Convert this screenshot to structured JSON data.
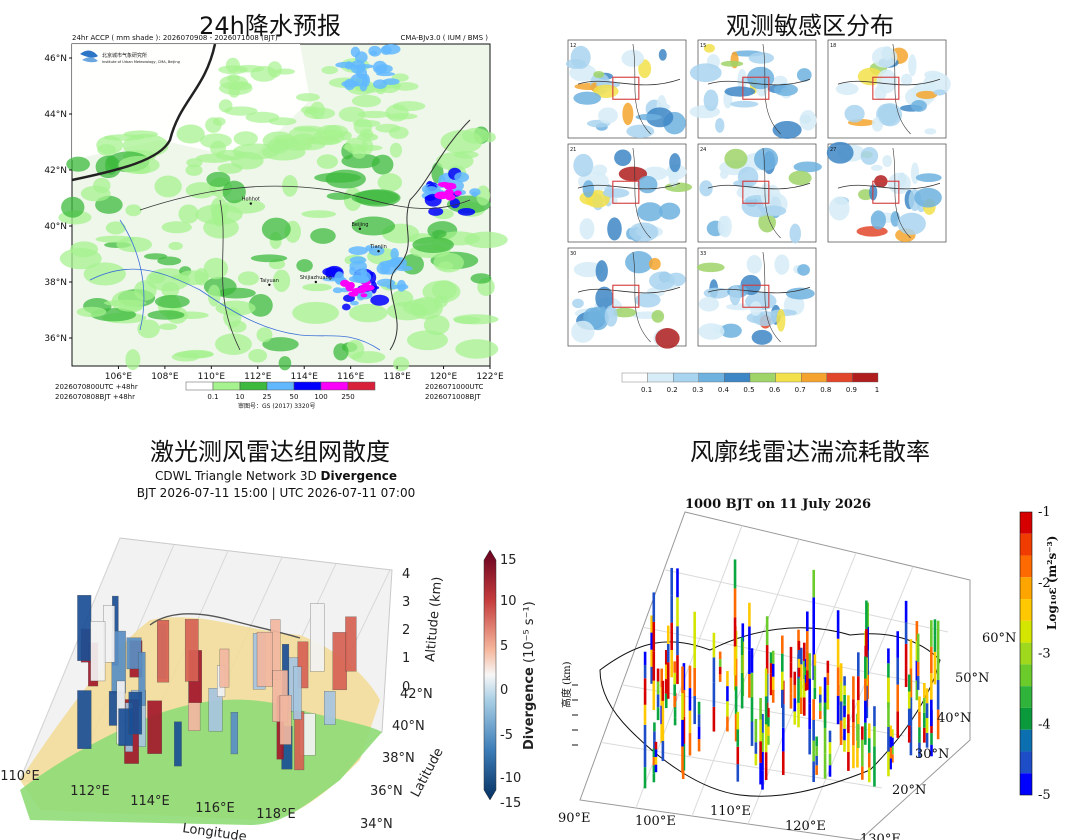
{
  "panels": {
    "p1": {
      "heading": "24h降水预报",
      "header_left": "24hr ACCP ( mm shade ): 2026070908 - 2026071008 (BJT)",
      "header_right": "CMA-BJv3.0 ( IUM / BMS )",
      "logo_text": "北京城市气象研究所",
      "logo_sub": "Institute of Urban Meteorology, CMA, Beijing",
      "lat_labels": [
        "46°N",
        "44°N",
        "42°N",
        "40°N",
        "38°N",
        "36°N"
      ],
      "lon_labels": [
        "106°E",
        "108°E",
        "110°E",
        "112°E",
        "114°E",
        "116°E",
        "118°E",
        "120°E",
        "122°E"
      ],
      "cities": [
        "Hohhot",
        "Beijing",
        "Tianjin",
        "Shijiazhuang",
        "Taiyuan"
      ],
      "footer_left": [
        "2026070800UTC  +48hr",
        "2026070808BJT   +48hr"
      ],
      "footer_right": [
        "2026071000UTC",
        "2026071008BJT"
      ],
      "legend_ticks": [
        "0.1",
        "10",
        "25",
        "50",
        "100",
        "250"
      ],
      "legend_colors": [
        "#ffffff",
        "#a6f28f",
        "#3dba3d",
        "#61b8ff",
        "#0000ff",
        "#fa00fa",
        "#d9203b"
      ],
      "approval": "审图号：GS (2017) 3320号"
    },
    "p2": {
      "heading": "观测敏感区分布",
      "panel_ids": [
        "12",
        "15",
        "18",
        "21",
        "24",
        "27",
        "30",
        "33"
      ],
      "colorbar_ticks": [
        "0.1",
        "0.2",
        "0.3",
        "0.4",
        "0.5",
        "0.6",
        "0.7",
        "0.8",
        "0.9",
        "1"
      ],
      "colorbar_colors": [
        "#ffffff",
        "#d6ecf7",
        "#a9d4ef",
        "#6fb1df",
        "#3d86c6",
        "#9fd468",
        "#f2e14a",
        "#f4a42e",
        "#e2462a",
        "#b01d1d"
      ]
    },
    "p3": {
      "heading": "激光测风雷达组网散度",
      "title_line1_prefix": "CDWL Triangle Network 3D",
      "title_line1_bold": "Divergence",
      "title_line2": "BJT 2026-07-11 15:00   |   UTC 2026-07-11 07:00",
      "x_ticks": [
        "110°E",
        "112°E",
        "114°E",
        "116°E",
        "118°E"
      ],
      "x_label": "Longitude",
      "y_ticks": [
        "34°N",
        "36°N",
        "38°N",
        "40°N",
        "42°N"
      ],
      "y_label": "Latitude",
      "z_ticks": [
        "0",
        "1",
        "2",
        "3",
        "4"
      ],
      "z_label": "Altitude (km)",
      "cbar_ticks": [
        "15",
        "10",
        "5",
        "0",
        "-5",
        "-10",
        "-15"
      ],
      "cbar_label": "Divergence (10⁻⁵ s⁻¹)"
    },
    "p4": {
      "heading": "风廓线雷达湍流耗散率",
      "title": "1000 BJT on 11 July 2026",
      "x_ticks": [
        "90°E",
        "100°E",
        "110°E",
        "120°E",
        "130°E"
      ],
      "y_ticks": [
        "20°N",
        "30°N",
        "40°N",
        "50°N",
        "60°N"
      ],
      "z_label": "高度 (km)",
      "cbar_ticks": [
        "-1",
        "-2",
        "-3",
        "-4",
        "-5"
      ],
      "cbar_label": "Log₁₀ε (m²s⁻³)"
    }
  },
  "chart_data": [
    {
      "type": "heatmap",
      "title": "24h降水预报",
      "xlabel": "",
      "ylabel": "",
      "xlim": [
        104,
        122
      ],
      "ylim": [
        35,
        46.5
      ],
      "legend_bins_mm": [
        0.1,
        10,
        25,
        50,
        100,
        250
      ],
      "hotspots": [
        {
          "lon": 116.2,
          "lat": 37.7,
          "level_mm": 100
        },
        {
          "lon": 120.3,
          "lat": 41.2,
          "level_mm": 100
        },
        {
          "lon": 117.3,
          "lat": 38.5,
          "level_mm": 50
        },
        {
          "lon": 116.8,
          "lat": 45.6,
          "level_mm": 50
        }
      ]
    },
    {
      "type": "heatmap",
      "title": "观测敏感区分布",
      "panels": [
        "12",
        "15",
        "18",
        "21",
        "24",
        "27",
        "30",
        "33"
      ],
      "colorbar": [
        0.1,
        0.2,
        0.3,
        0.4,
        0.5,
        0.6,
        0.7,
        0.8,
        0.9,
        1
      ]
    },
    {
      "type": "scatter",
      "title": "CDWL Triangle Network 3D Divergence",
      "xlim": [
        110,
        119
      ],
      "ylim": [
        34,
        43
      ],
      "zlim": [
        0,
        4
      ],
      "clim": [
        -15,
        15
      ],
      "xlabel": "Longitude",
      "ylabel": "Latitude",
      "zlabel": "Altitude (km)"
    },
    {
      "type": "scatter",
      "title": "1000 BJT on 11 July 2026",
      "xlim": [
        90,
        130
      ],
      "ylim": [
        20,
        60
      ],
      "clim": [
        -5,
        -1
      ],
      "zlabel": "高度 (km)",
      "colorbar_label": "Log₁₀ε (m²s⁻³)"
    }
  ]
}
